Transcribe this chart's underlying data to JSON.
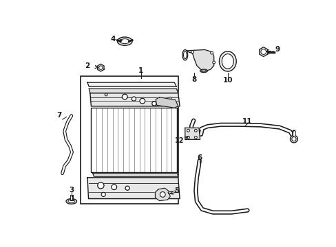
{
  "bg_color": "#ffffff",
  "line_color": "#1a1a1a",
  "parts_labels": [
    "1",
    "2",
    "3",
    "4",
    "5",
    "6",
    "7",
    "8",
    "9",
    "10",
    "11",
    "12"
  ]
}
